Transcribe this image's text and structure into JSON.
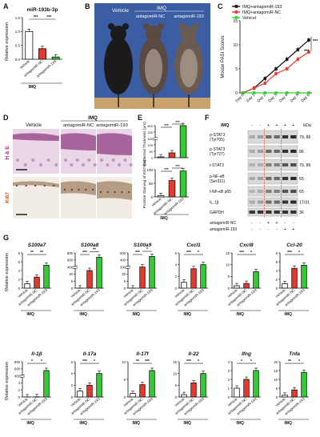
{
  "colors": {
    "vehicle": "#ffffff",
    "nc": "#e8382b",
    "ant": "#33cc33",
    "black": "#111111",
    "he_bg": "#e9d6e6",
    "ki_bg": "#f1ece4",
    "mouse_bg": "#3a5da4"
  },
  "panels": {
    "A": {
      "letter": "A",
      "title": "miR-193b-3p",
      "ylabel": "Relative expression",
      "yticks": [
        "0.0",
        "0.5",
        "1.0",
        "1.5"
      ],
      "categories": [
        "Vehicle",
        "antagomiR-NC",
        "antagomiR-193"
      ],
      "sig": [
        "***",
        "***"
      ],
      "group_label": "IMQ"
    },
    "B": {
      "letter": "B",
      "labels": {
        "vehicle": "Vehicle",
        "imq": "IMQ",
        "nc": "antagomiR-NC",
        "ant": "antagomiR-193"
      },
      "mice": [
        {
          "icon": "mouse-back-icon"
        },
        {
          "icon": "mouse-back-icon"
        },
        {
          "icon": "mouse-back-icon"
        }
      ]
    },
    "C": {
      "letter": "C",
      "ylabel": "Mouse PASI Scores",
      "yticks": [
        "0",
        "5",
        "10",
        "15"
      ],
      "xticks": [
        "Day 0",
        "Day 1",
        "Day 2",
        "Day 3",
        "Day 4",
        "Day 5",
        "Day 6"
      ],
      "legend": [
        "IMQ+antagomiR-193",
        "IMQ+antagomiR-NC",
        "Vehicel"
      ],
      "sig": [
        "***",
        "***"
      ]
    },
    "D": {
      "letter": "D",
      "cols": [
        "Vehicle",
        "antagomiR-NC",
        "antagomiR-193"
      ],
      "imq": "IMQ",
      "rows": [
        "H & E",
        "Ki67"
      ]
    },
    "E": {
      "letter": "E",
      "ylabel_top": "Epidermal Thickness (μm)",
      "yticks_top": [
        "0",
        "50",
        "100",
        "150",
        "200",
        "800"
      ],
      "ylabel_bottom": "Positive Staining of Ki67 (%)",
      "yticks_bottom": [
        "0",
        "50",
        "100"
      ],
      "categories": [
        "Vehicle",
        "antagomiR-NC",
        "antagomiR-193"
      ],
      "sig_top": [
        "***",
        "***",
        "***"
      ],
      "sig_bottom": [
        "***",
        "***",
        "***"
      ],
      "group_label": "IMQ"
    },
    "F": {
      "letter": "F",
      "imq": "IMQ",
      "kda": "kDa",
      "bands": [
        {
          "name": "p-STAT3 (Tyr705)",
          "kda": "79, 86"
        },
        {
          "name": "p-STAT3 (Tyr727)",
          "kda": "86"
        },
        {
          "name": "t-STAT3",
          "kda": "79, 86"
        },
        {
          "name": "p-NF-κB (Ser311)",
          "kda": "65"
        },
        {
          "name": "t-NF-κB p65",
          "kda": "65"
        },
        {
          "name": "IL-1β",
          "kda": "17/31"
        },
        {
          "name": "GAPDH",
          "kda": "36"
        }
      ],
      "lane_imq": [
        "-",
        "-",
        "+",
        "+",
        "+",
        "+"
      ],
      "lane_nc": [
        "-",
        "-",
        "+",
        "+",
        "-",
        "-"
      ],
      "lane_ant": [
        "-",
        "-",
        "-",
        "-",
        "+",
        "+"
      ],
      "row_labels": {
        "nc": "antagomiR-NC",
        "ant": "antagomiR-193"
      }
    },
    "G": {
      "letter": "G",
      "ylabel": "Relative expression",
      "categories": [
        "Vehicle",
        "antagomiR-NC",
        "antagomiR-193"
      ],
      "group_label": "IMQ",
      "genes_top": [
        {
          "title": "S100a7",
          "yticks": [
            "0",
            "2",
            "4",
            "6",
            "8"
          ],
          "sig": [
            "**",
            "**"
          ]
        },
        {
          "title": "S100a8",
          "yticks": [
            "0",
            "5",
            "20",
            "400",
            "600",
            "800"
          ],
          "sig": [
            "***",
            "**"
          ]
        },
        {
          "title": "S100a9",
          "yticks": [
            "0",
            "5",
            "20",
            "300",
            "400",
            "500"
          ],
          "sig": [
            "***",
            "*"
          ]
        },
        {
          "title": "Cxcl1",
          "yticks": [
            "0",
            "2",
            "4",
            "6"
          ],
          "sig": [
            "***",
            "*"
          ]
        },
        {
          "title": "Cxcl8",
          "yticks": [
            "0",
            "5",
            "10",
            "15"
          ],
          "sig": [
            "***",
            "*"
          ]
        },
        {
          "title": "Ccl-20",
          "yticks": [
            "0",
            "2",
            "4",
            "6",
            "8"
          ],
          "sig": [
            "***",
            "*"
          ]
        }
      ],
      "genes_bottom": [
        {
          "title": "Il-1β",
          "yticks": [
            "0",
            "2",
            "4",
            "400",
            "600",
            "800"
          ],
          "sig": [
            "*",
            "*"
          ]
        },
        {
          "title": "Il-17a",
          "yticks": [
            "0",
            "2",
            "4",
            "6"
          ],
          "sig": [
            "***",
            "*"
          ]
        },
        {
          "title": "Il-17f",
          "yticks": [
            "0",
            "5",
            "10"
          ],
          "sig": [
            "**",
            "***"
          ]
        },
        {
          "title": "Il-22",
          "yticks": [
            "0",
            "5",
            "10",
            "15"
          ],
          "sig": [
            "***",
            "*"
          ]
        },
        {
          "title": "Ifng",
          "yticks": [
            "0",
            "1",
            "2",
            "3",
            "4"
          ],
          "sig": [
            "*",
            "*"
          ]
        },
        {
          "title": "Tnfa",
          "yticks": [
            "0",
            "5",
            "10",
            "15",
            "20"
          ],
          "sig": [
            "**",
            "*"
          ]
        }
      ]
    }
  },
  "chart_data": [
    {
      "type": "bar",
      "title": "miR-193b-3p",
      "ylabel": "Relative expression",
      "categories": [
        "Vehicle",
        "antagomiR-NC",
        "antagomiR-193"
      ],
      "values": [
        1.0,
        0.38,
        0.08
      ],
      "ylim": [
        0,
        1.5
      ]
    },
    {
      "type": "line",
      "ylabel": "Mouse PASI Scores",
      "x": [
        "Day 0",
        "Day 1",
        "Day 2",
        "Day 3",
        "Day 4",
        "Day 5",
        "Day 6"
      ],
      "ylim": [
        0,
        15
      ],
      "series": [
        {
          "name": "IMQ+antagomiR-193",
          "values": [
            0,
            1,
            3,
            5,
            7,
            9,
            11
          ]
        },
        {
          "name": "IMQ+antagomiR-NC",
          "values": [
            0,
            1,
            2,
            4,
            5,
            7,
            8.5
          ]
        },
        {
          "name": "Vehicel",
          "values": [
            0,
            0,
            0,
            0,
            0,
            0,
            0
          ]
        }
      ]
    },
    {
      "type": "bar",
      "ylabel": "Epidermal Thickness (μm)",
      "categories": [
        "Vehicle",
        "antagomiR-NC",
        "antagomiR-193"
      ],
      "values": [
        20,
        120,
        800
      ]
    },
    {
      "type": "bar",
      "ylabel": "Positive Staining of Ki67 (%)",
      "categories": [
        "Vehicle",
        "antagomiR-NC",
        "antagomiR-193"
      ],
      "values": [
        5,
        60,
        95
      ],
      "ylim": [
        0,
        100
      ]
    },
    {
      "type": "bar",
      "title": "S100a7",
      "categories": [
        "Vehicle",
        "antagomiR-NC",
        "antagomiR-193"
      ],
      "values": [
        1,
        2.5,
        5.2
      ],
      "ylim": [
        0,
        8
      ]
    },
    {
      "type": "bar",
      "title": "S100a8",
      "categories": [
        "Vehicle",
        "antagomiR-NC",
        "antagomiR-193"
      ],
      "values": [
        1,
        400,
        700
      ]
    },
    {
      "type": "bar",
      "title": "S100a9",
      "categories": [
        "Vehicle",
        "antagomiR-NC",
        "antagomiR-193"
      ],
      "values": [
        1,
        300,
        450
      ]
    },
    {
      "type": "bar",
      "title": "Cxcl1",
      "categories": [
        "Vehicle",
        "antagomiR-NC",
        "antagomiR-193"
      ],
      "values": [
        1,
        3.3,
        4.0
      ],
      "ylim": [
        0,
        6
      ]
    },
    {
      "type": "bar",
      "title": "Cxcl8",
      "categories": [
        "Vehicle",
        "antagomiR-NC",
        "antagomiR-193"
      ],
      "values": [
        1,
        2,
        7
      ],
      "ylim": [
        0,
        15
      ]
    },
    {
      "type": "bar",
      "title": "Ccl-20",
      "categories": [
        "Vehicle",
        "antagomiR-NC",
        "antagomiR-193"
      ],
      "values": [
        1,
        4.5,
        5.2
      ],
      "ylim": [
        0,
        8
      ]
    },
    {
      "type": "bar",
      "title": "Il-1β",
      "categories": [
        "Vehicle",
        "antagomiR-NC",
        "antagomiR-193"
      ],
      "values": [
        1,
        4,
        600
      ]
    },
    {
      "type": "bar",
      "title": "Il-17a",
      "categories": [
        "Vehicle",
        "antagomiR-NC",
        "antagomiR-193"
      ],
      "values": [
        1,
        2,
        4
      ],
      "ylim": [
        0,
        6
      ]
    },
    {
      "type": "bar",
      "title": "Il-17f",
      "categories": [
        "Vehicle",
        "antagomiR-NC",
        "antagomiR-193"
      ],
      "values": [
        1,
        3.5,
        7.5
      ],
      "ylim": [
        0,
        10
      ]
    },
    {
      "type": "bar",
      "title": "Il-22",
      "categories": [
        "Vehicle",
        "antagomiR-NC",
        "antagomiR-193"
      ],
      "values": [
        1,
        6,
        10
      ],
      "ylim": [
        0,
        15
      ]
    },
    {
      "type": "bar",
      "title": "Ifng",
      "categories": [
        "Vehicle",
        "antagomiR-NC",
        "antagomiR-193"
      ],
      "values": [
        1,
        2,
        3
      ],
      "ylim": [
        0,
        4
      ]
    },
    {
      "type": "bar",
      "title": "Tnfa",
      "categories": [
        "Vehicle",
        "antagomiR-NC",
        "antagomiR-193"
      ],
      "values": [
        1,
        4,
        14
      ],
      "ylim": [
        0,
        20
      ]
    }
  ]
}
